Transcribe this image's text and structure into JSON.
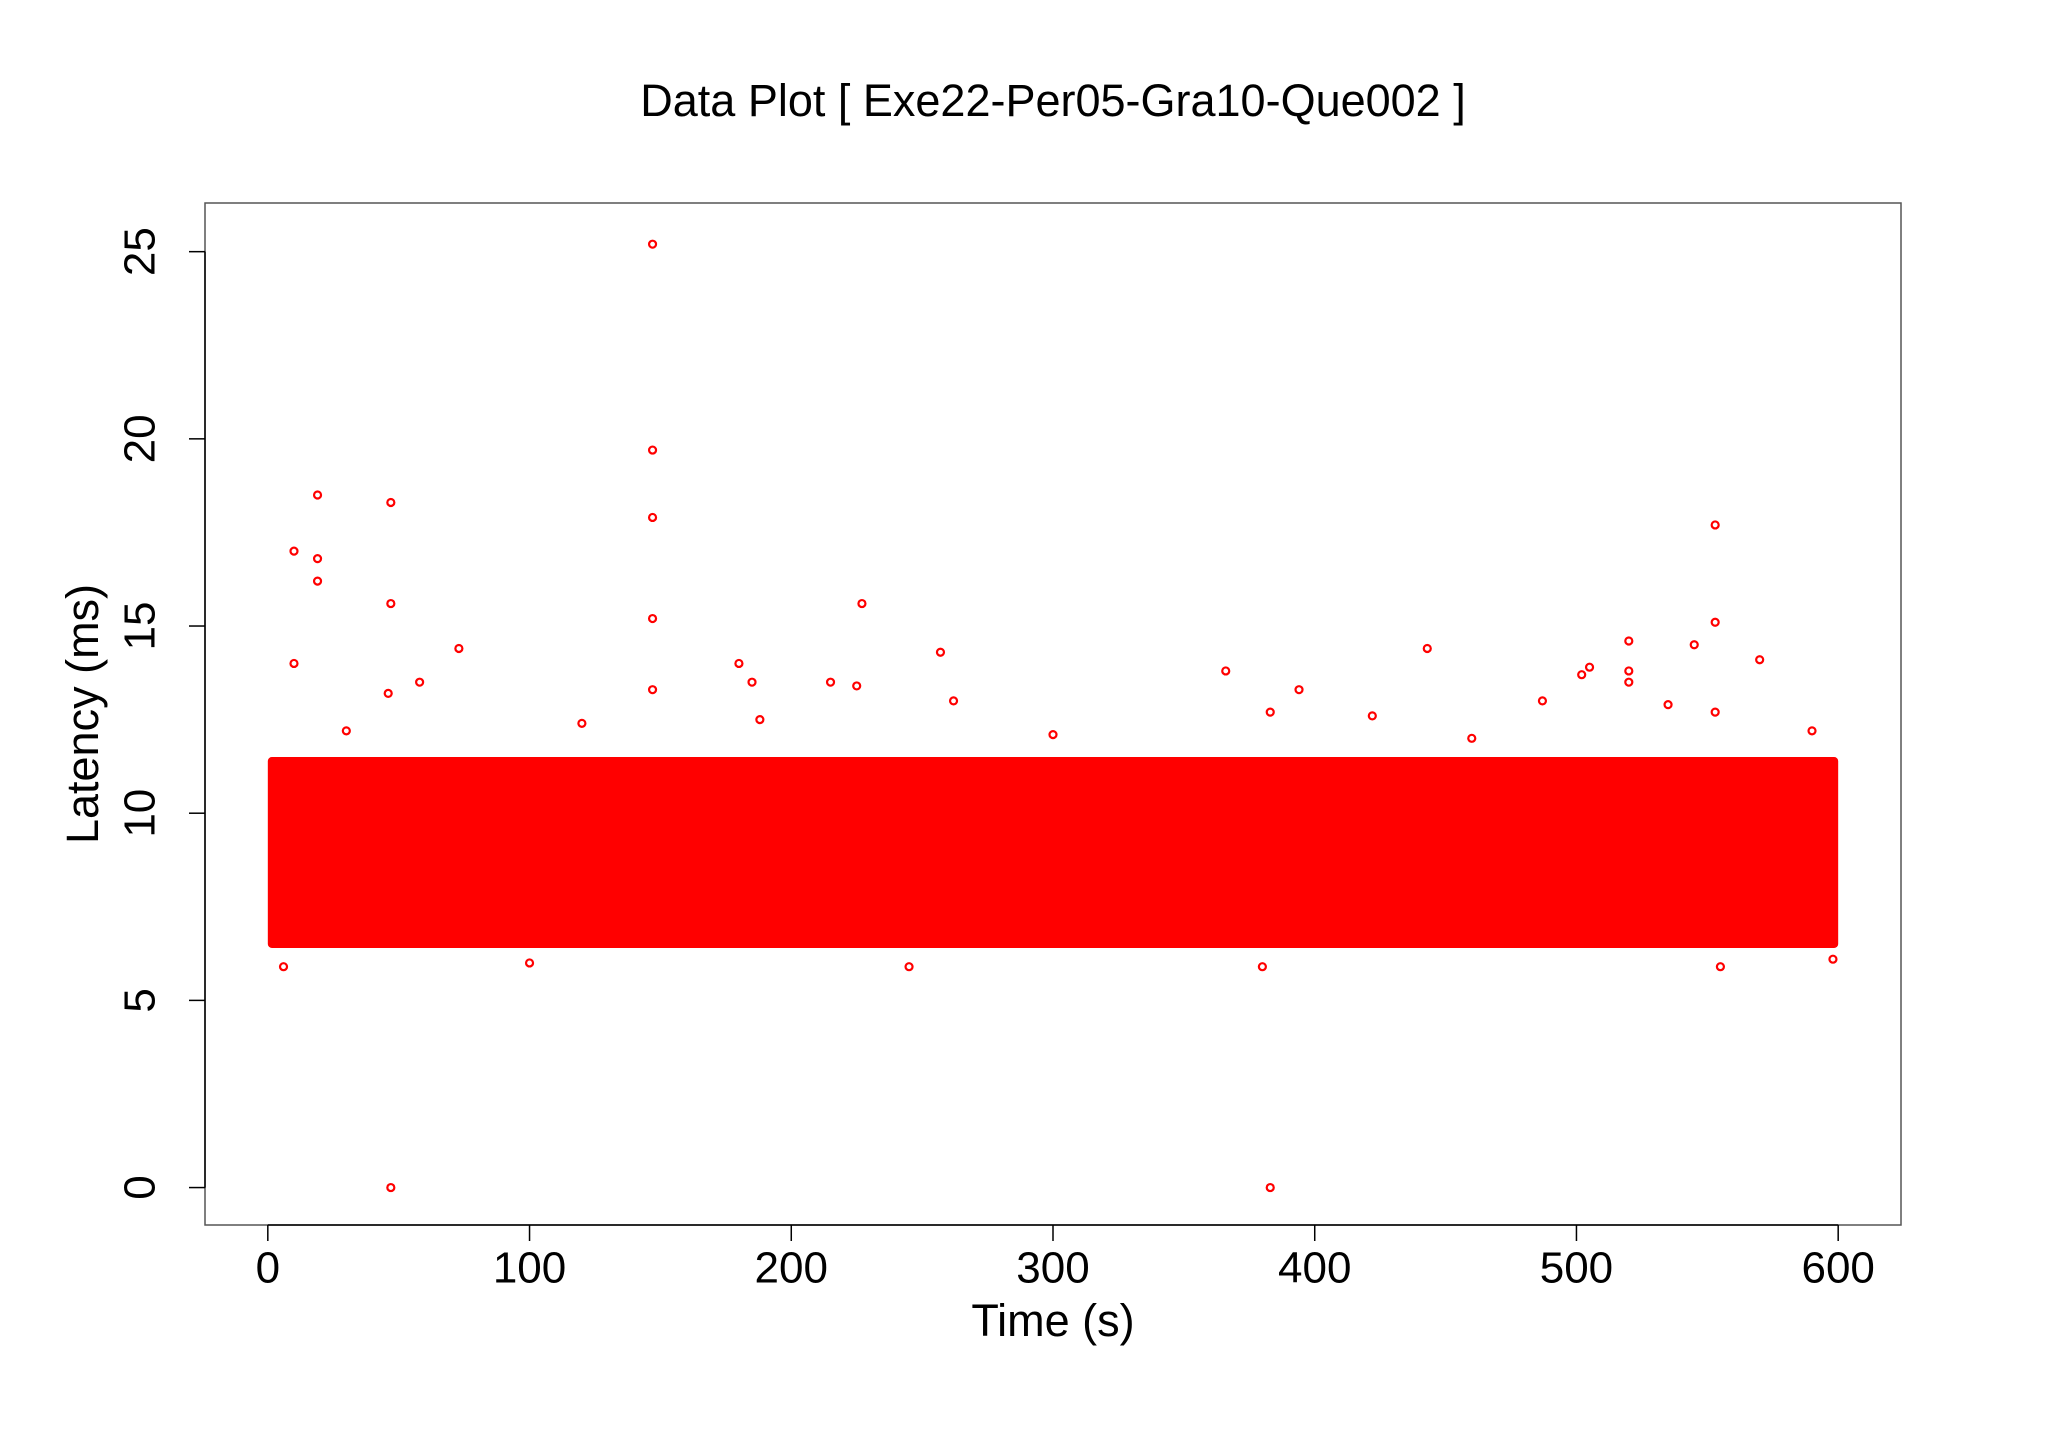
{
  "chart_data": {
    "type": "scatter",
    "title": "Data Plot [ Exe22-Per05-Gra10-Que002 ]",
    "x_label": "Time (s)",
    "y_label": "Latency (ms)",
    "color": "#ff0000",
    "xlim": [
      -24,
      624
    ],
    "ylim": [
      -1.0,
      26.3
    ],
    "xticks": [
      0,
      100,
      200,
      300,
      400,
      500,
      600
    ],
    "yticks": [
      0,
      5,
      10,
      15,
      20,
      25
    ],
    "dense_region": {
      "x": [
        0,
        600
      ],
      "y": [
        6.4,
        11.5
      ]
    },
    "x": [
      47,
      383,
      147,
      147,
      147,
      147,
      147,
      19,
      47,
      10,
      19,
      19,
      47,
      10,
      73,
      58,
      46,
      227,
      257,
      180,
      185,
      215,
      225,
      262,
      366,
      394,
      383,
      443,
      553,
      553,
      570,
      520,
      520,
      520,
      505,
      502,
      545,
      535,
      487,
      553,
      6,
      100,
      245,
      380,
      555,
      422,
      188,
      598,
      30,
      120,
      300,
      460,
      590
    ],
    "y": [
      0,
      0,
      25.2,
      19.7,
      17.9,
      15.2,
      13.3,
      18.5,
      18.3,
      17,
      16.8,
      16.2,
      15.6,
      14,
      14.4,
      13.5,
      13.2,
      15.6,
      14.3,
      14,
      13.5,
      13.5,
      13.4,
      13,
      13.8,
      13.3,
      12.7,
      14.4,
      17.7,
      15.1,
      14.1,
      14.6,
      13.8,
      13.5,
      13.9,
      13.7,
      14.5,
      12.9,
      13,
      12.7,
      5.9,
      6,
      5.9,
      5.9,
      5.9,
      12.6,
      12.5,
      6.1,
      12.2,
      12.4,
      12.1,
      12.0,
      12.2
    ]
  }
}
